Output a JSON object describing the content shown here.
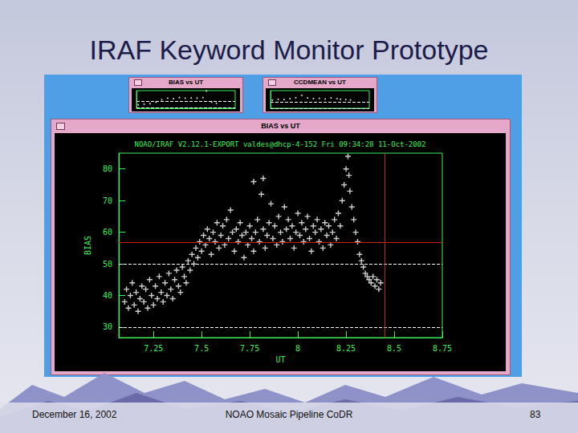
{
  "slide": {
    "title": "IRAF Keyword Monitor Prototype",
    "footer": [
      "December 16, 2002",
      "NOAO Mosaic Pipeline CoDR",
      "83"
    ]
  },
  "chart_data": [
    {
      "type": "scatter",
      "title": "BIAS vs UT",
      "subtitle": "NOAO/IRAF V2.12.1-EXPORT valdes@dhcp-4-152 Fri 09:34:28 11-Oct-2002",
      "x_label": "UT",
      "y_label": "BIAS",
      "x": [
        7.1,
        7.11,
        7.12,
        7.13,
        7.14,
        7.15,
        7.16,
        7.17,
        7.18,
        7.19,
        7.2,
        7.21,
        7.22,
        7.23,
        7.24,
        7.25,
        7.26,
        7.27,
        7.28,
        7.29,
        7.3,
        7.31,
        7.32,
        7.33,
        7.34,
        7.35,
        7.36,
        7.37,
        7.38,
        7.39,
        7.4,
        7.41,
        7.42,
        7.43,
        7.44,
        7.45,
        7.46,
        7.47,
        7.48,
        7.49,
        7.5,
        7.51,
        7.52,
        7.53,
        7.54,
        7.55,
        7.56,
        7.57,
        7.58,
        7.59,
        7.6,
        7.61,
        7.62,
        7.63,
        7.64,
        7.65,
        7.66,
        7.67,
        7.68,
        7.69,
        7.7,
        7.71,
        7.72,
        7.73,
        7.74,
        7.75,
        7.76,
        7.77,
        7.77,
        7.78,
        7.79,
        7.8,
        7.81,
        7.82,
        7.82,
        7.83,
        7.84,
        7.85,
        7.86,
        7.87,
        7.88,
        7.89,
        7.9,
        7.91,
        7.92,
        7.93,
        7.94,
        7.95,
        7.96,
        7.97,
        7.98,
        7.99,
        8.0,
        8.01,
        8.02,
        8.03,
        8.04,
        8.05,
        8.06,
        8.07,
        8.08,
        8.09,
        8.1,
        8.11,
        8.12,
        8.13,
        8.14,
        8.15,
        8.16,
        8.17,
        8.18,
        8.19,
        8.2,
        8.21,
        8.22,
        8.23,
        8.24,
        8.25,
        8.26,
        8.265,
        8.27,
        8.28,
        8.29,
        8.3,
        8.31,
        8.32,
        8.33,
        8.34,
        8.35,
        8.36,
        8.37,
        8.38,
        8.39,
        8.4,
        8.41,
        8.42,
        8.43
      ],
      "values": [
        38,
        42,
        36,
        40,
        44,
        37,
        41,
        35,
        39,
        43,
        38,
        42,
        36,
        45,
        40,
        37,
        43,
        39,
        46,
        41,
        38,
        44,
        40,
        47,
        42,
        39,
        45,
        48,
        43,
        41,
        49,
        46,
        44,
        51,
        48,
        53,
        50,
        55,
        52,
        57,
        54,
        59,
        56,
        61,
        58,
        53,
        60,
        57,
        63,
        55,
        59,
        62,
        56,
        64,
        58,
        67,
        60,
        54,
        61,
        57,
        63,
        59,
        52,
        60,
        56,
        62,
        58,
        54,
        76,
        60,
        64,
        57,
        72,
        61,
        77,
        55,
        59,
        63,
        69,
        58,
        62,
        56,
        65,
        60,
        57,
        68,
        61,
        64,
        58,
        62,
        55,
        60,
        66,
        59,
        63,
        57,
        61,
        65,
        58,
        54,
        62,
        60,
        64,
        57,
        61,
        55,
        63,
        59,
        62,
        56,
        60,
        64,
        58,
        66,
        62,
        70,
        75,
        80,
        84,
        78,
        73,
        68,
        64,
        60,
        57,
        53,
        51,
        49,
        47,
        46,
        45,
        44,
        46,
        43,
        45,
        42,
        44
      ],
      "color": "#ffffff",
      "marker": "plus",
      "grid": false,
      "xlim": [
        7.07,
        8.75
      ],
      "xticks": [
        7.25,
        7.5,
        7.75,
        8,
        8.25,
        8.5,
        8.75
      ],
      "ylim": [
        26.7,
        85
      ],
      "yticks": [
        30,
        40,
        50,
        60,
        70,
        80
      ],
      "reference_lines": [
        50,
        30
      ],
      "cursor": [
        8.45,
        56.7
      ]
    },
    {
      "type": "scatter",
      "title": "BIAS vs UT",
      "x": [
        7.1,
        7.2,
        7.3,
        7.4,
        7.5,
        7.6,
        7.7,
        7.8,
        7.9,
        8.0,
        8.1,
        8.2,
        8.26,
        8.35,
        8.43
      ],
      "values": [
        38,
        40,
        42,
        47,
        55,
        60,
        58,
        62,
        60,
        61,
        60,
        62,
        84,
        47,
        43
      ],
      "color": "#ffffff",
      "marker": "dot",
      "grid": false,
      "tick_labels": false,
      "xlim": [
        7.07,
        8.75
      ],
      "ylim": [
        26.7,
        85
      ],
      "reference_lines": [
        50,
        30
      ]
    },
    {
      "type": "scatter",
      "title": "CCDMEAN vs UT",
      "x": [
        7.1,
        7.2,
        7.3,
        7.4,
        7.5,
        7.6,
        7.7,
        7.8,
        7.9,
        8.0,
        8.1,
        8.2,
        8.26,
        8.35,
        8.43
      ],
      "values": [
        55,
        58,
        57,
        60,
        63,
        70,
        62,
        60,
        61,
        59,
        62,
        60,
        58,
        57,
        56
      ],
      "color": "#ffffff",
      "marker": "dot",
      "grid": false,
      "tick_labels": false,
      "xlim": [
        7.07,
        8.75
      ],
      "ylim": [
        30,
        85
      ],
      "reference_lines": [
        50,
        30
      ]
    }
  ]
}
